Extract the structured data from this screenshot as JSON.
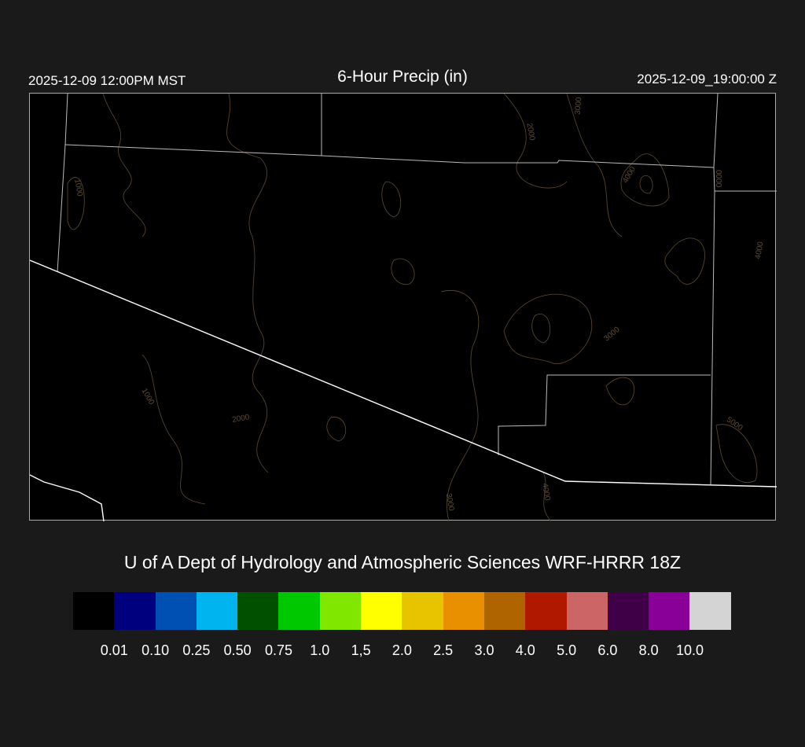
{
  "header": {
    "left_timestamp": "2025-12-09 12:00PM MST",
    "title": "6-Hour Precip (in)",
    "right_timestamp": "2025-12-09_19:00:00 Z"
  },
  "map": {
    "contour_color": "#5e4a33",
    "boundary_color": "#bbbbbb",
    "border_color": "#ffffff",
    "contour_labels": [
      "1000",
      "2000",
      "3000",
      "4000",
      "0000",
      "4000",
      "3000",
      "1000",
      "2000",
      "3000",
      "4000",
      "5000"
    ]
  },
  "credit": "U of A Dept of Hydrology and Atmospheric Sciences WRF-HRRR 18Z",
  "legend": {
    "colors": [
      "#000000",
      "#00007e",
      "#0050b4",
      "#00b4f0",
      "#005000",
      "#00c800",
      "#80e800",
      "#ffff00",
      "#e8c400",
      "#e89000",
      "#b06400",
      "#b01800",
      "#cc6666",
      "#400048",
      "#880098",
      "#d4d4d4"
    ],
    "labels": [
      "0.01",
      "0.10",
      "0.25",
      "0.50",
      "0.75",
      "1.0",
      "1,5",
      "2.0",
      "2.5",
      "3.0",
      "4.0",
      "5.0",
      "6.0",
      "8.0",
      "10.0"
    ]
  }
}
